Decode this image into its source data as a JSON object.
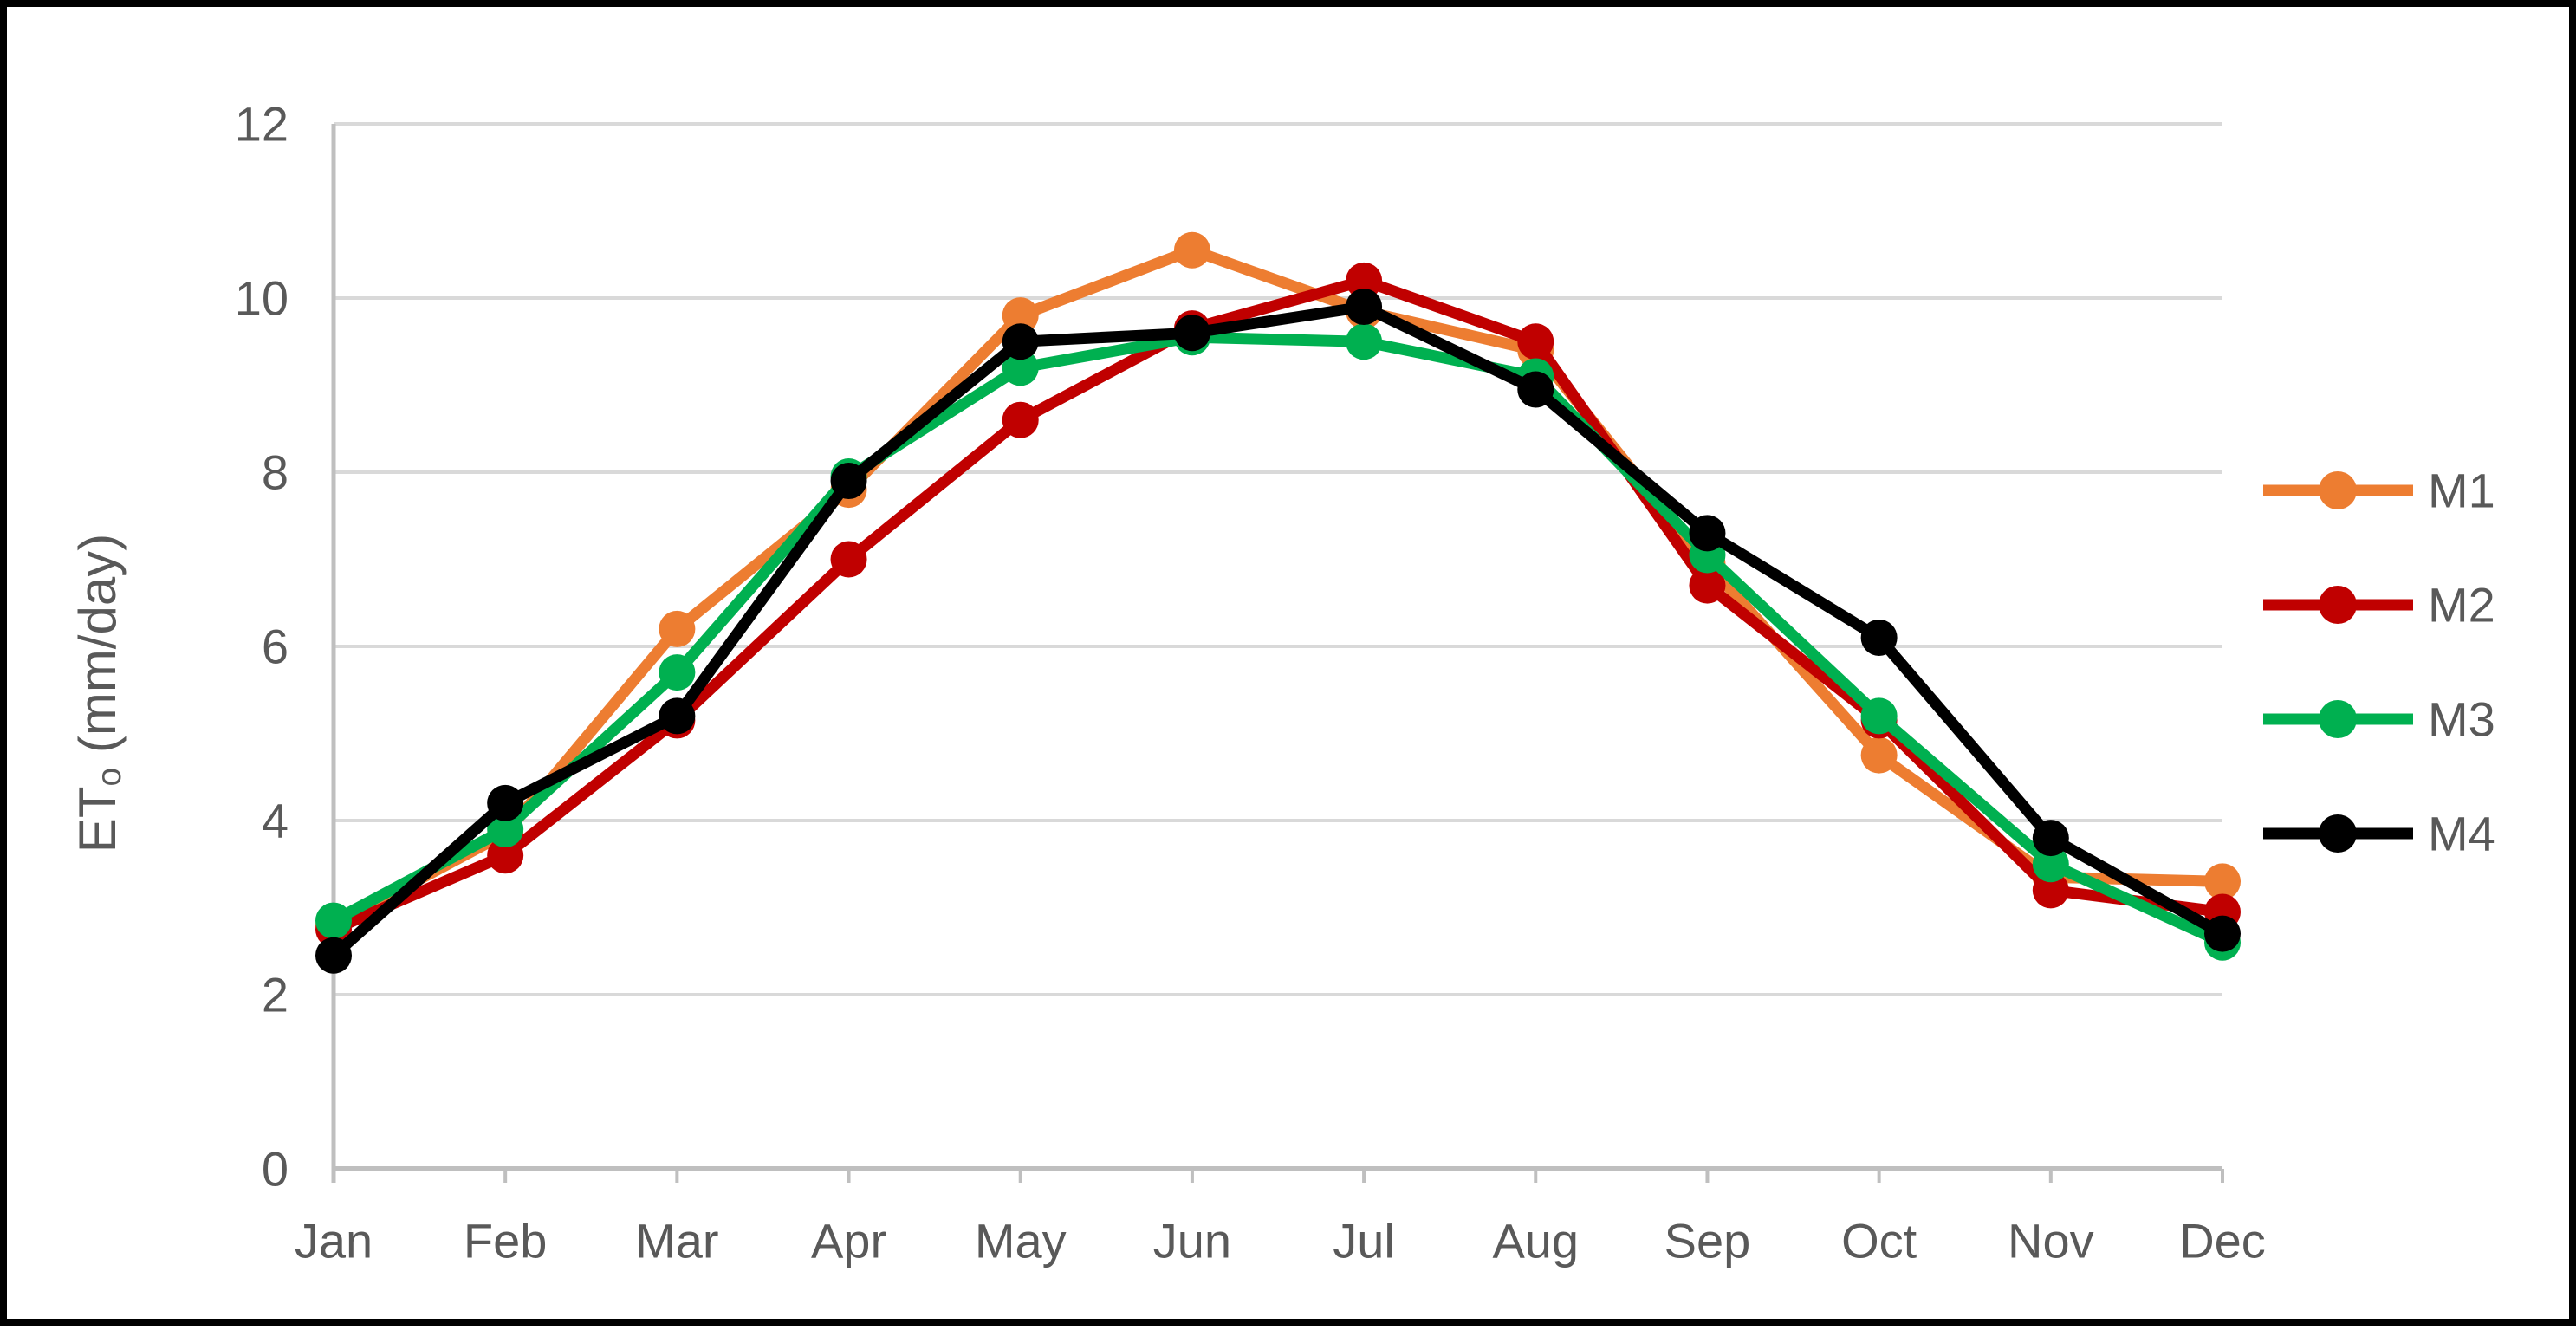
{
  "chart_data": {
    "type": "line",
    "title": "",
    "xlabel": "",
    "ylabel_main": "ET",
    "ylabel_sub": "o",
    "ylabel_unit": " (mm/day)",
    "categories": [
      "Jan",
      "Feb",
      "Mar",
      "Apr",
      "May",
      "Jun",
      "Jul",
      "Aug",
      "Sep",
      "Oct",
      "Nov",
      "Dec"
    ],
    "series": [
      {
        "name": "M1",
        "color": "#ED7D31",
        "values": [
          2.8,
          3.85,
          6.2,
          7.8,
          9.8,
          10.55,
          9.85,
          9.4,
          6.95,
          4.75,
          3.35,
          3.3
        ]
      },
      {
        "name": "M2",
        "color": "#C00000",
        "values": [
          2.75,
          3.6,
          5.15,
          7.0,
          8.6,
          9.65,
          10.2,
          9.5,
          6.7,
          5.15,
          3.2,
          2.95
        ]
      },
      {
        "name": "M3",
        "color": "#00B050",
        "values": [
          2.85,
          3.9,
          5.7,
          7.95,
          9.2,
          9.55,
          9.5,
          9.1,
          7.05,
          5.2,
          3.5,
          2.6
        ]
      },
      {
        "name": "M4",
        "color": "#000000",
        "values": [
          2.45,
          4.2,
          5.2,
          7.9,
          9.5,
          9.6,
          9.9,
          8.95,
          7.3,
          6.1,
          3.8,
          2.7
        ]
      }
    ],
    "ylim": [
      0,
      12
    ],
    "yticks": [
      0,
      2,
      4,
      6,
      8,
      10,
      12
    ],
    "grid": true,
    "legend_position": "right",
    "legend_labels": [
      "M1",
      "M2",
      "M3",
      "M4"
    ]
  },
  "styles": {
    "background": "#FFFFFF",
    "border_color": "#000000",
    "text_color": "#595959",
    "gridline_color": "#D9D9D9",
    "axis_color": "#BFBFBF"
  }
}
